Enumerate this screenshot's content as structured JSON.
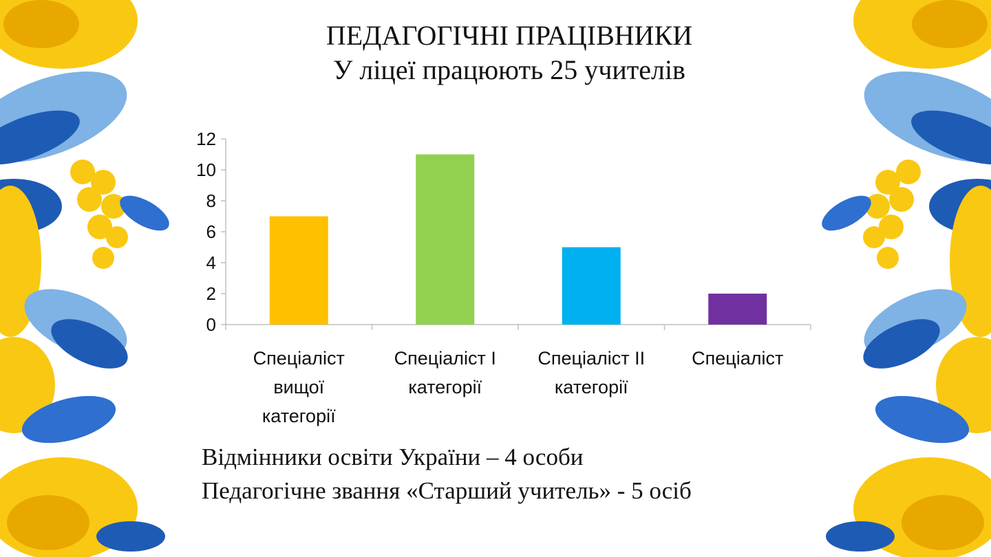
{
  "slide": {
    "title": "ПЕДАГОГІЧНІ ПРАЦІВНИКИ",
    "subtitle": "У ліцеї працюють  25 учителів",
    "notes": [
      "Відмінники освіти України – 4 особи",
      "Педагогічне звання «Старший учитель» - 5 осіб"
    ]
  },
  "chart_data": {
    "type": "bar",
    "categories": [
      [
        "Спеціаліст",
        "вищої",
        "категорії"
      ],
      [
        "Спеціаліст І",
        "категорії"
      ],
      [
        "Спеціаліст ІІ",
        "категорії"
      ],
      [
        "Спеціаліст"
      ]
    ],
    "values": [
      7,
      11,
      5,
      2
    ],
    "colors": [
      "#FFC000",
      "#92D050",
      "#00B0F0",
      "#7030A0"
    ],
    "ylim": [
      0,
      12
    ],
    "yticks": [
      0,
      2,
      4,
      6,
      8,
      10,
      12
    ],
    "grid": false,
    "legend": "none"
  },
  "decor": {
    "left_border": "floral-ornament",
    "right_border": "floral-ornament",
    "colors": {
      "yellow": "#F9C813",
      "blue": "#1E5BB5",
      "light_blue": "#7FB2E5"
    }
  }
}
